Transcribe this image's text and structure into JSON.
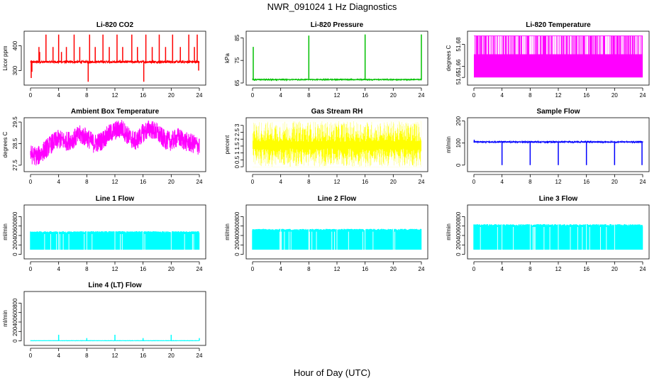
{
  "page": {
    "title": "NWR_091024  1 Hz Diagnostics",
    "xlabel": "Hour of Day (UTC)"
  },
  "colors": {
    "red": "#ff0000",
    "green": "#00c000",
    "magenta": "#ff00ff",
    "yellow": "#ffff00",
    "blue": "#0000ff",
    "cyan": "#00ffff",
    "axis": "#000000"
  },
  "chart_data": [
    {
      "type": "line",
      "title": "Li-820 CO2",
      "ylabel": "Licor ppm",
      "color": "red",
      "xlim": [
        0,
        24
      ],
      "xticks": [
        0,
        4,
        8,
        12,
        16,
        20,
        24
      ],
      "ylim": [
        250,
        450
      ],
      "yticks": [
        300,
        400
      ],
      "baseline": 335,
      "noise": 5,
      "spikes": [
        [
          0.1,
          270
        ],
        [
          0.2,
          295
        ],
        [
          1.2,
          395
        ],
        [
          1.3,
          375
        ],
        [
          2.2,
          445
        ],
        [
          3.2,
          395
        ],
        [
          4.0,
          445
        ],
        [
          4.4,
          375
        ],
        [
          5.1,
          395
        ],
        [
          6.2,
          445
        ],
        [
          7.0,
          395
        ],
        [
          8.2,
          255
        ],
        [
          8.4,
          445
        ],
        [
          9.2,
          395
        ],
        [
          10.3,
          445
        ],
        [
          11.2,
          395
        ],
        [
          12.3,
          445
        ],
        [
          13.1,
          395
        ],
        [
          14.4,
          445
        ],
        [
          15.2,
          395
        ],
        [
          16.1,
          255
        ],
        [
          16.4,
          445
        ],
        [
          17.3,
          395
        ],
        [
          18.3,
          445
        ],
        [
          19.2,
          395
        ],
        [
          20.2,
          445
        ],
        [
          21.3,
          395
        ],
        [
          22.5,
          445
        ],
        [
          23.3,
          395
        ],
        [
          23.7,
          445
        ],
        [
          23.9,
          300
        ]
      ]
    },
    {
      "type": "line",
      "title": "Li-820 Pressure",
      "ylabel": "kPa",
      "color": "green",
      "xlim": [
        0,
        24
      ],
      "xticks": [
        0,
        4,
        8,
        12,
        16,
        20,
        24
      ],
      "ylim": [
        65,
        87
      ],
      "yticks": [
        65,
        75,
        85
      ],
      "baseline": 66.5,
      "noise": 0.2,
      "spikes": [
        [
          0.1,
          81
        ],
        [
          8.0,
          86
        ],
        [
          16.0,
          86.5
        ],
        [
          24.0,
          86.5
        ]
      ]
    },
    {
      "type": "band",
      "title": "Li-820 Temperature",
      "ylabel": "degrees C",
      "color": "magenta",
      "xlim": [
        0,
        24
      ],
      "xticks": [
        0,
        4,
        8,
        12,
        16,
        20,
        24
      ],
      "ylim": [
        51.645,
        51.69
      ],
      "yticks": [
        51.65,
        51.66,
        51.68
      ],
      "band": [
        51.65,
        51.688
      ],
      "gaps": true,
      "gap_y": 51.671
    },
    {
      "type": "line",
      "title": "Ambient Box Temperature",
      "ylabel": "degrees C",
      "color": "magenta",
      "xlim": [
        0,
        24
      ],
      "xticks": [
        0,
        4,
        8,
        12,
        16,
        20,
        24
      ],
      "ylim": [
        27.3,
        29.6
      ],
      "yticks": [
        27.5,
        28.5,
        29.5
      ],
      "trend": [
        [
          0,
          28.0
        ],
        [
          1,
          27.9
        ],
        [
          2,
          28.2
        ],
        [
          3,
          28.5
        ],
        [
          4,
          28.7
        ],
        [
          5,
          28.6
        ],
        [
          6,
          28.7
        ],
        [
          7,
          28.9
        ],
        [
          8,
          28.8
        ],
        [
          9,
          28.5
        ],
        [
          10,
          28.6
        ],
        [
          11,
          28.9
        ],
        [
          12,
          29.1
        ],
        [
          13,
          29.2
        ],
        [
          14,
          28.8
        ],
        [
          15,
          28.6
        ],
        [
          16,
          29.0
        ],
        [
          17,
          29.2
        ],
        [
          18,
          29.0
        ],
        [
          19,
          28.7
        ],
        [
          20,
          28.6
        ],
        [
          21,
          28.8
        ],
        [
          22,
          28.6
        ],
        [
          23,
          28.5
        ],
        [
          24,
          28.4
        ]
      ],
      "noise": 0.45
    },
    {
      "type": "band",
      "title": "Gas Stream RH",
      "ylabel": "percent",
      "color": "yellow",
      "xlim": [
        0,
        24
      ],
      "xticks": [
        0,
        4,
        8,
        12,
        16,
        20,
        24
      ],
      "ylim": [
        -0.2,
        3.4
      ],
      "yticks": [
        0.0,
        0.5,
        1.0,
        1.5,
        2.0,
        2.5,
        3.0
      ],
      "band": [
        0.0,
        3.3
      ],
      "gaps": false
    },
    {
      "type": "line",
      "title": "Sample Flow",
      "ylabel": "ml/min",
      "color": "blue",
      "xlim": [
        0,
        24
      ],
      "xticks": [
        0,
        4,
        8,
        12,
        16,
        20,
        24
      ],
      "ylim": [
        -20,
        205
      ],
      "yticks": [
        0,
        100,
        200
      ],
      "baseline": 105,
      "noise": 3,
      "spikes": [
        [
          0.05,
          115
        ],
        [
          4.0,
          0
        ],
        [
          8.0,
          0
        ],
        [
          12.0,
          0
        ],
        [
          16.0,
          0
        ],
        [
          20.0,
          0
        ],
        [
          23.9,
          0
        ]
      ]
    },
    {
      "type": "flow",
      "title": "Line 1 Flow",
      "ylabel": "ml/min",
      "color": "cyan",
      "xlim": [
        0,
        24
      ],
      "xticks": [
        0,
        4,
        8,
        12,
        16,
        20,
        24
      ],
      "ylim": [
        -50,
        1000
      ],
      "yticks": [
        0,
        200,
        400,
        600,
        800
      ],
      "band": [
        100,
        490
      ]
    },
    {
      "type": "flow",
      "title": "Line 2 Flow",
      "ylabel": "ml/min",
      "color": "cyan",
      "xlim": [
        0,
        24
      ],
      "xticks": [
        0,
        4,
        8,
        12,
        16,
        20,
        24
      ],
      "ylim": [
        -50,
        1000
      ],
      "yticks": [
        0,
        200,
        400,
        600,
        800
      ],
      "band": [
        100,
        540
      ]
    },
    {
      "type": "flow",
      "title": "Line 3 Flow",
      "ylabel": "ml/min",
      "color": "cyan",
      "xlim": [
        0,
        24
      ],
      "xticks": [
        0,
        4,
        8,
        12,
        16,
        20,
        24
      ],
      "ylim": [
        -50,
        1000
      ],
      "yticks": [
        0,
        200,
        400,
        600,
        800
      ],
      "band": [
        100,
        640
      ]
    },
    {
      "type": "line",
      "title": "Line 4 (LT) Flow",
      "ylabel": "ml/min",
      "color": "cyan",
      "xlim": [
        0,
        24
      ],
      "xticks": [
        0,
        4,
        8,
        12,
        16,
        20,
        24
      ],
      "ylim": [
        -50,
        1000
      ],
      "yticks": [
        0,
        200,
        400,
        600,
        800
      ],
      "baseline": 5,
      "noise": 2,
      "spikes": [
        [
          4.0,
          130
        ],
        [
          8.0,
          60
        ],
        [
          12.0,
          130
        ],
        [
          16.0,
          60
        ],
        [
          20.0,
          130
        ],
        [
          24.0,
          60
        ]
      ]
    }
  ]
}
